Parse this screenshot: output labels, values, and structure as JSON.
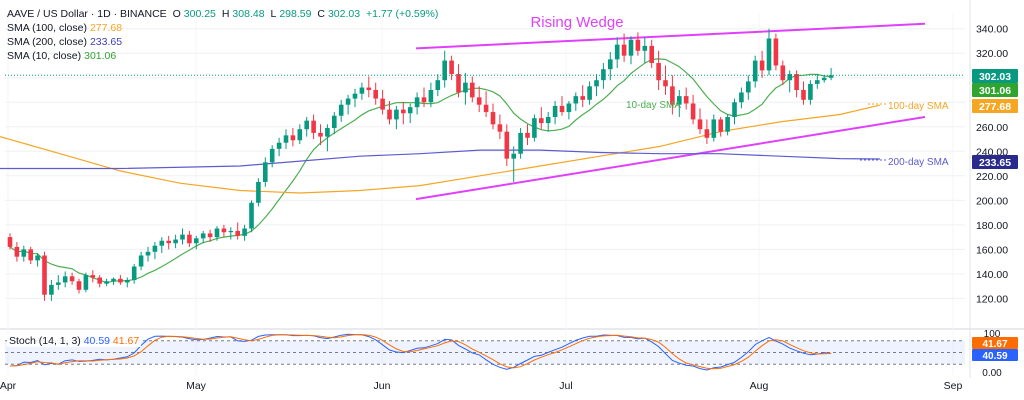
{
  "header": {
    "symbol": "AAVE / US Dollar · 1D · BINANCE",
    "o_label": "O",
    "o": "300.25",
    "h_label": "H",
    "h": "308.48",
    "l_label": "L",
    "l": "298.59",
    "c_label": "C",
    "c": "302.03",
    "change": "+1.77 (+0.59%)"
  },
  "indicators": [
    {
      "label": "SMA (100, close)",
      "value": "277.68",
      "color": "#f5a623"
    },
    {
      "label": "SMA (200, close)",
      "value": "233.65",
      "color": "#3f3fb4"
    },
    {
      "label": "SMA (10, close)",
      "value": "301.06",
      "color": "#2fa52f"
    }
  ],
  "stoch": {
    "label": "Stoch (14, 1, 3)",
    "k": "40.59",
    "d": "41.67"
  },
  "colors": {
    "up": "#089981",
    "down": "#f23645",
    "wedge": "#e040fb",
    "sma10": "#4caf50",
    "sma100": "#f5a623",
    "sma200": "#5c5ccf",
    "stoch_k": "#2962ff",
    "stoch_d": "#ff6d00"
  },
  "chart_data": {
    "type": "candlestick",
    "title": "Rising Wedge",
    "x_ticks": [
      "Apr",
      "May",
      "Jun",
      "Jul",
      "Aug",
      "Sep"
    ],
    "y_ticks": [
      120,
      140,
      160,
      180,
      200,
      220,
      240,
      260,
      280,
      300,
      320,
      340
    ],
    "ylim": [
      104,
      352
    ],
    "stoch_ticks": [
      0,
      20,
      50,
      80,
      100
    ],
    "stoch_tick_labels": [
      "0.00",
      "100"
    ],
    "price_labels": [
      {
        "value": 302.03,
        "text": "302.03",
        "color": "#089981"
      },
      {
        "value": 301.06,
        "text": "301.06",
        "color": "#2fa52f"
      },
      {
        "value": 277.68,
        "text": "277.68",
        "color": "#f5a623"
      },
      {
        "value": 233.65,
        "text": "233.65",
        "color": "#2a2a8c"
      }
    ],
    "stoch_labels": [
      {
        "value": 41.67,
        "text": "41.67",
        "color": "#ff6d00"
      },
      {
        "value": 40.59,
        "text": "40.59",
        "color": "#2962ff"
      }
    ],
    "annotations": [
      {
        "text": "10-day SMA",
        "color": "#4caf50"
      },
      {
        "text": "100-day SMA",
        "color": "#f5a623"
      },
      {
        "text": "200-day SMA",
        "color": "#5c5ccf"
      }
    ],
    "candles": [
      [
        170,
        173,
        160,
        162
      ],
      [
        162,
        166,
        150,
        154
      ],
      [
        154,
        163,
        150,
        160
      ],
      [
        160,
        162,
        148,
        151
      ],
      [
        151,
        157,
        146,
        155
      ],
      [
        155,
        158,
        118,
        123
      ],
      [
        123,
        135,
        118,
        131
      ],
      [
        131,
        139,
        127,
        133
      ],
      [
        133,
        142,
        129,
        138
      ],
      [
        138,
        141,
        131,
        134
      ],
      [
        134,
        136,
        124,
        127
      ],
      [
        127,
        141,
        125,
        139
      ],
      [
        139,
        143,
        133,
        137
      ],
      [
        137,
        139,
        129,
        132
      ],
      [
        132,
        136,
        130,
        134
      ],
      [
        134,
        137,
        131,
        136
      ],
      [
        136,
        139,
        131,
        133
      ],
      [
        133,
        137,
        129,
        135
      ],
      [
        135,
        148,
        132,
        146
      ],
      [
        146,
        158,
        143,
        155
      ],
      [
        155,
        162,
        150,
        158
      ],
      [
        158,
        166,
        152,
        163
      ],
      [
        163,
        170,
        157,
        167
      ],
      [
        167,
        171,
        160,
        165
      ],
      [
        165,
        172,
        161,
        168
      ],
      [
        168,
        177,
        164,
        172
      ],
      [
        172,
        175,
        162,
        165
      ],
      [
        165,
        171,
        160,
        169
      ],
      [
        169,
        175,
        165,
        173
      ],
      [
        173,
        176,
        166,
        170
      ],
      [
        170,
        179,
        167,
        177
      ],
      [
        177,
        180,
        170,
        174
      ],
      [
        174,
        178,
        168,
        175
      ],
      [
        175,
        182,
        168,
        171
      ],
      [
        171,
        180,
        167,
        177
      ],
      [
        177,
        200,
        174,
        198
      ],
      [
        198,
        218,
        195,
        215
      ],
      [
        215,
        235,
        211,
        231
      ],
      [
        231,
        245,
        227,
        242
      ],
      [
        242,
        251,
        236,
        247
      ],
      [
        247,
        258,
        242,
        253
      ],
      [
        253,
        259,
        244,
        249
      ],
      [
        249,
        262,
        246,
        258
      ],
      [
        258,
        268,
        252,
        265
      ],
      [
        265,
        270,
        250,
        255
      ],
      [
        255,
        262,
        245,
        252
      ],
      [
        252,
        262,
        240,
        259
      ],
      [
        259,
        272,
        254,
        269
      ],
      [
        269,
        282,
        264,
        278
      ],
      [
        278,
        286,
        270,
        283
      ],
      [
        283,
        291,
        276,
        287
      ],
      [
        287,
        296,
        282,
        292
      ],
      [
        292,
        301,
        284,
        290
      ],
      [
        290,
        296,
        278,
        283
      ],
      [
        283,
        290,
        270,
        274
      ],
      [
        274,
        281,
        262,
        266
      ],
      [
        266,
        277,
        258,
        274
      ],
      [
        274,
        280,
        262,
        271
      ],
      [
        271,
        279,
        263,
        276
      ],
      [
        276,
        288,
        270,
        284
      ],
      [
        284,
        292,
        276,
        280
      ],
      [
        280,
        296,
        276,
        290
      ],
      [
        290,
        303,
        285,
        298
      ],
      [
        298,
        322,
        292,
        314
      ],
      [
        314,
        318,
        298,
        303
      ],
      [
        303,
        311,
        284,
        288
      ],
      [
        288,
        304,
        278,
        296
      ],
      [
        296,
        301,
        280,
        284
      ],
      [
        284,
        293,
        272,
        278
      ],
      [
        278,
        289,
        268,
        272
      ],
      [
        272,
        279,
        258,
        262
      ],
      [
        262,
        270,
        250,
        256
      ],
      [
        256,
        262,
        228,
        234
      ],
      [
        234,
        244,
        215,
        238
      ],
      [
        238,
        259,
        234,
        255
      ],
      [
        255,
        262,
        245,
        251
      ],
      [
        251,
        270,
        248,
        267
      ],
      [
        267,
        276,
        258,
        263
      ],
      [
        263,
        272,
        256,
        268
      ],
      [
        268,
        281,
        262,
        277
      ],
      [
        277,
        285,
        269,
        272
      ],
      [
        272,
        281,
        266,
        279
      ],
      [
        279,
        288,
        273,
        285
      ],
      [
        285,
        294,
        276,
        282
      ],
      [
        282,
        297,
        278,
        293
      ],
      [
        293,
        303,
        285,
        298
      ],
      [
        298,
        312,
        291,
        307
      ],
      [
        307,
        321,
        298,
        315
      ],
      [
        315,
        333,
        308,
        327
      ],
      [
        327,
        336,
        313,
        318
      ],
      [
        318,
        334,
        311,
        331
      ],
      [
        331,
        337,
        318,
        322
      ],
      [
        322,
        333,
        312,
        326
      ],
      [
        326,
        331,
        308,
        312
      ],
      [
        312,
        322,
        290,
        298
      ],
      [
        298,
        310,
        286,
        293
      ],
      [
        293,
        302,
        270,
        278
      ],
      [
        278,
        290,
        268,
        285
      ],
      [
        285,
        292,
        274,
        279
      ],
      [
        279,
        286,
        262,
        266
      ],
      [
        266,
        275,
        254,
        258
      ],
      [
        258,
        266,
        246,
        251
      ],
      [
        251,
        270,
        248,
        266
      ],
      [
        266,
        268,
        252,
        256
      ],
      [
        256,
        270,
        253,
        268
      ],
      [
        268,
        283,
        262,
        280
      ],
      [
        280,
        292,
        275,
        288
      ],
      [
        288,
        302,
        282,
        297
      ],
      [
        297,
        318,
        292,
        314
      ],
      [
        314,
        322,
        300,
        306
      ],
      [
        306,
        340,
        302,
        332
      ],
      [
        332,
        336,
        306,
        310
      ],
      [
        310,
        314,
        294,
        298
      ],
      [
        298,
        306,
        288,
        303
      ],
      [
        303,
        306,
        284,
        290
      ],
      [
        290,
        297,
        278,
        282
      ],
      [
        282,
        298,
        278,
        295
      ],
      [
        295,
        303,
        291,
        298
      ],
      [
        298,
        302,
        296,
        300
      ],
      [
        300,
        308,
        298,
        302
      ]
    ]
  }
}
